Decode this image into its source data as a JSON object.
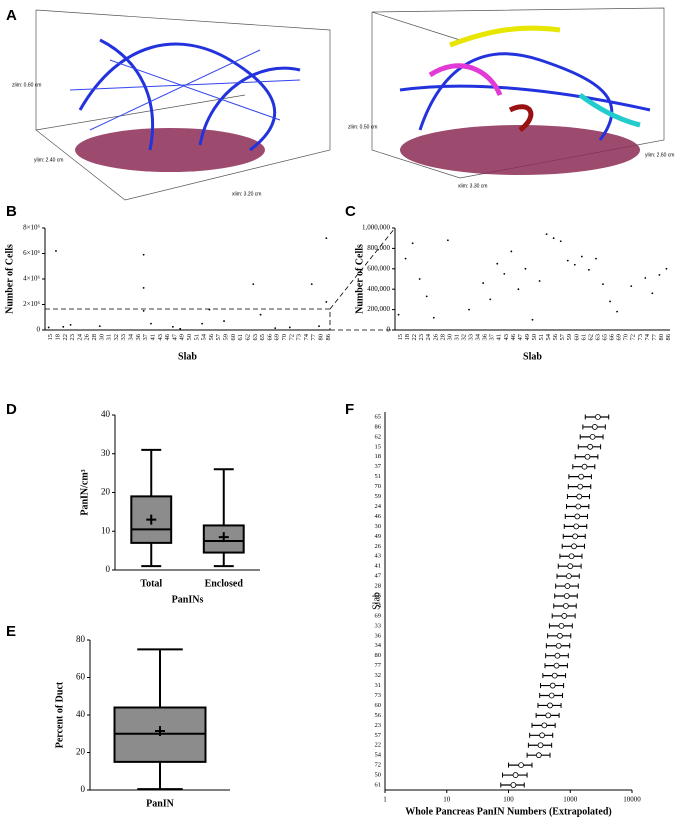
{
  "figure_a": {
    "panel": "A",
    "left": {
      "zlim": "zlim: 0.60 cm",
      "ylim": "ylim: 2.40 cm",
      "xlim": "xlim: 3.20 cm"
    },
    "right": {
      "zlim": "zlim: 0.50 cm",
      "ylim": "ylim: 2.60 cm",
      "xlim": "xlim: 3.30 cm"
    }
  },
  "chart_data": [
    {
      "panel": "B",
      "type": "scatter",
      "x_label": "Slab",
      "y_label": "Number of Cells",
      "color": "#000",
      "categories": [
        "15",
        "18",
        "22",
        "23",
        "24",
        "26",
        "28",
        "30",
        "31",
        "32",
        "33",
        "34",
        "36",
        "37",
        "41",
        "43",
        "46",
        "47",
        "49",
        "50",
        "51",
        "54",
        "56",
        "57",
        "59",
        "60",
        "61",
        "62",
        "63",
        "65",
        "66",
        "69",
        "70",
        "72",
        "73",
        "74",
        "77",
        "80",
        "86"
      ],
      "x": [
        "18",
        "37",
        "37",
        "63",
        "77",
        "86",
        "86",
        "56",
        "37",
        "41",
        "65",
        "30",
        "23",
        "22",
        "15",
        "59",
        "69",
        "80",
        "47",
        "49",
        "54",
        "72"
      ],
      "values": [
        6200000,
        5900000,
        3300000,
        3600000,
        3600000,
        7200000,
        2200000,
        1600000,
        1500000,
        500000,
        1200000,
        300000,
        400000,
        250000,
        200000,
        700000,
        150000,
        300000,
        250000,
        100000,
        500000,
        200000
      ],
      "ylim": [
        0,
        8000000
      ],
      "yticks": [
        0,
        {
          "value": 2000000,
          "label": "2×10⁶"
        },
        {
          "value": 4000000,
          "label": "4×10⁶"
        },
        {
          "value": 6000000,
          "label": "6×10⁶"
        },
        {
          "value": 8000000,
          "label": "8×10⁶"
        }
      ]
    },
    {
      "panel": "C",
      "type": "scatter",
      "x_label": "Slab",
      "y_label": "Number of Cells",
      "color": "#000",
      "categories": [
        "15",
        "18",
        "22",
        "23",
        "24",
        "26",
        "28",
        "30",
        "31",
        "32",
        "33",
        "34",
        "36",
        "37",
        "41",
        "43",
        "46",
        "47",
        "49",
        "50",
        "51",
        "54",
        "56",
        "57",
        "59",
        "60",
        "61",
        "62",
        "63",
        "65",
        "66",
        "69",
        "70",
        "72",
        "73",
        "74",
        "77",
        "80",
        "86"
      ],
      "x": [
        "18",
        "22",
        "23",
        "24",
        "30",
        "36",
        "37",
        "41",
        "43",
        "46",
        "47",
        "49",
        "51",
        "54",
        "56",
        "57",
        "59",
        "60",
        "61",
        "62",
        "63",
        "65",
        "66",
        "69",
        "72",
        "74",
        "77",
        "80",
        "86",
        "15",
        "26",
        "33",
        "50"
      ],
      "values": [
        700000,
        850000,
        500000,
        330000,
        880000,
        460000,
        300000,
        650000,
        550000,
        770000,
        400000,
        600000,
        480000,
        940000,
        900000,
        870000,
        680000,
        640000,
        720000,
        590000,
        700000,
        450000,
        280000,
        180000,
        430000,
        510000,
        360000,
        540000,
        600000,
        150000,
        120000,
        200000,
        100000
      ],
      "ylim": [
        0,
        1000000
      ],
      "yticks": [
        0,
        {
          "value": 200000,
          "label": "200,000"
        },
        {
          "value": 400000,
          "label": "400,000"
        },
        {
          "value": 600000,
          "label": "600,000"
        },
        {
          "value": 800000,
          "label": "800,000"
        },
        {
          "value": 1000000,
          "label": "1,000,000"
        }
      ]
    },
    {
      "panel": "D",
      "type": "box",
      "x_label": "PanINs",
      "y_label": "PanIN/cm³",
      "color": "#8c8c8c",
      "categories": [
        "Total",
        "Enclosed"
      ],
      "min": [
        1,
        1
      ],
      "q1": [
        7,
        4.5
      ],
      "median": [
        10.5,
        7.5
      ],
      "q3": [
        19,
        11.5
      ],
      "max": [
        31,
        26
      ],
      "mean": [
        13,
        8.5
      ],
      "ylim": [
        0,
        40
      ],
      "yticks": [
        0,
        10,
        20,
        30,
        40
      ]
    },
    {
      "panel": "E",
      "type": "box",
      "y_label": "Percent of Duct",
      "color": "#8c8c8c",
      "categories": [
        "PanIN"
      ],
      "min": [
        0.5
      ],
      "q1": [
        15
      ],
      "median": [
        30
      ],
      "q3": [
        44
      ],
      "max": [
        75
      ],
      "mean": [
        31.5
      ],
      "ylim": [
        0,
        80
      ],
      "yticks": [
        0,
        20,
        40,
        60,
        80
      ]
    },
    {
      "panel": "F",
      "type": "interval",
      "x_label": "Whole Pancreas PanIN Numbers (Extrapolated)",
      "y_label": "Slab",
      "log_x": true,
      "categories": [
        "65",
        "86",
        "62",
        "15",
        "18",
        "37",
        "51",
        "70",
        "59",
        "24",
        "46",
        "30",
        "49",
        "26",
        "43",
        "41",
        "47",
        "28",
        "66",
        "74",
        "69",
        "33",
        "36",
        "34",
        "80",
        "77",
        "32",
        "31",
        "73",
        "60",
        "56",
        "23",
        "57",
        "22",
        "54",
        "72",
        "50",
        "61"
      ],
      "values": [
        2800,
        2500,
        2300,
        2100,
        1900,
        1700,
        1500,
        1450,
        1400,
        1350,
        1300,
        1250,
        1200,
        1150,
        1050,
        1000,
        950,
        900,
        880,
        850,
        800,
        720,
        680,
        650,
        620,
        600,
        560,
        520,
        500,
        470,
        440,
        380,
        350,
        330,
        310,
        160,
        130,
        120
      ],
      "low": [
        1750,
        1600,
        1450,
        1350,
        1200,
        1100,
        950,
        930,
        900,
        870,
        830,
        800,
        770,
        740,
        680,
        640,
        610,
        580,
        560,
        540,
        510,
        460,
        430,
        410,
        400,
        390,
        360,
        330,
        320,
        300,
        280,
        240,
        220,
        210,
        200,
        100,
        80,
        75
      ],
      "high": [
        4200,
        3700,
        3400,
        3100,
        2800,
        2500,
        2200,
        2150,
        2050,
        2000,
        1900,
        1850,
        1750,
        1700,
        1550,
        1500,
        1400,
        1350,
        1300,
        1250,
        1200,
        1080,
        1020,
        980,
        930,
        900,
        840,
        780,
        750,
        710,
        660,
        570,
        520,
        500,
        470,
        240,
        200,
        180
      ],
      "xlim": [
        1,
        10000
      ],
      "xticks": [
        1,
        10,
        100,
        1000,
        10000
      ]
    }
  ]
}
